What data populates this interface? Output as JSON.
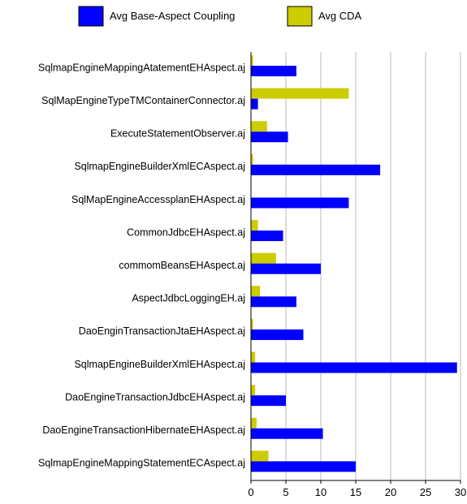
{
  "chart_data": {
    "type": "bar",
    "orientation": "horizontal",
    "title": "",
    "xlabel": "",
    "ylabel": "",
    "xlim": [
      0,
      30
    ],
    "xticks": [
      0,
      5,
      10,
      15,
      20,
      25,
      30
    ],
    "grid": "vertical",
    "legend_position": "top",
    "categories": [
      "SqlmapEngineMappingAtatementEHAspect.aj",
      "SqlMapEngineTypeTMContainerConnector.aj",
      "ExecuteStatementObserver.aj",
      "SqlmapEngineBuilderXmlECAspect.aj",
      "SqlMapEngineAccessplanEHAspect.aj",
      "CommonJdbcEHAspect.aj",
      "commomBeansEHAspect.aj",
      "AspectJdbcLoggingEH.aj",
      "DaoEnginTransactionJtaEHAspect.aj",
      "SqlmapEngineBuilderXmlEHAspect.aj",
      "DaoEngineTransactionJdbcEHAspect.aj",
      "DaoEngineTransactionHibernateEHAspect.aj",
      "SqlmapEngineMappingStatementECAspect.aj"
    ],
    "series": [
      {
        "name": "Avg Base-Aspect Coupling",
        "color": "#0000ff",
        "values": [
          6.5,
          1.0,
          5.3,
          18.5,
          14.0,
          4.6,
          10.0,
          6.5,
          7.5,
          29.5,
          5.0,
          10.3,
          15.0
        ]
      },
      {
        "name": "Avg CDA",
        "color": "#cccc00",
        "values": [
          0.3,
          14.0,
          2.3,
          0.3,
          0.0,
          1.0,
          3.6,
          1.3,
          0.3,
          0.6,
          0.6,
          0.8,
          2.5
        ]
      }
    ]
  }
}
